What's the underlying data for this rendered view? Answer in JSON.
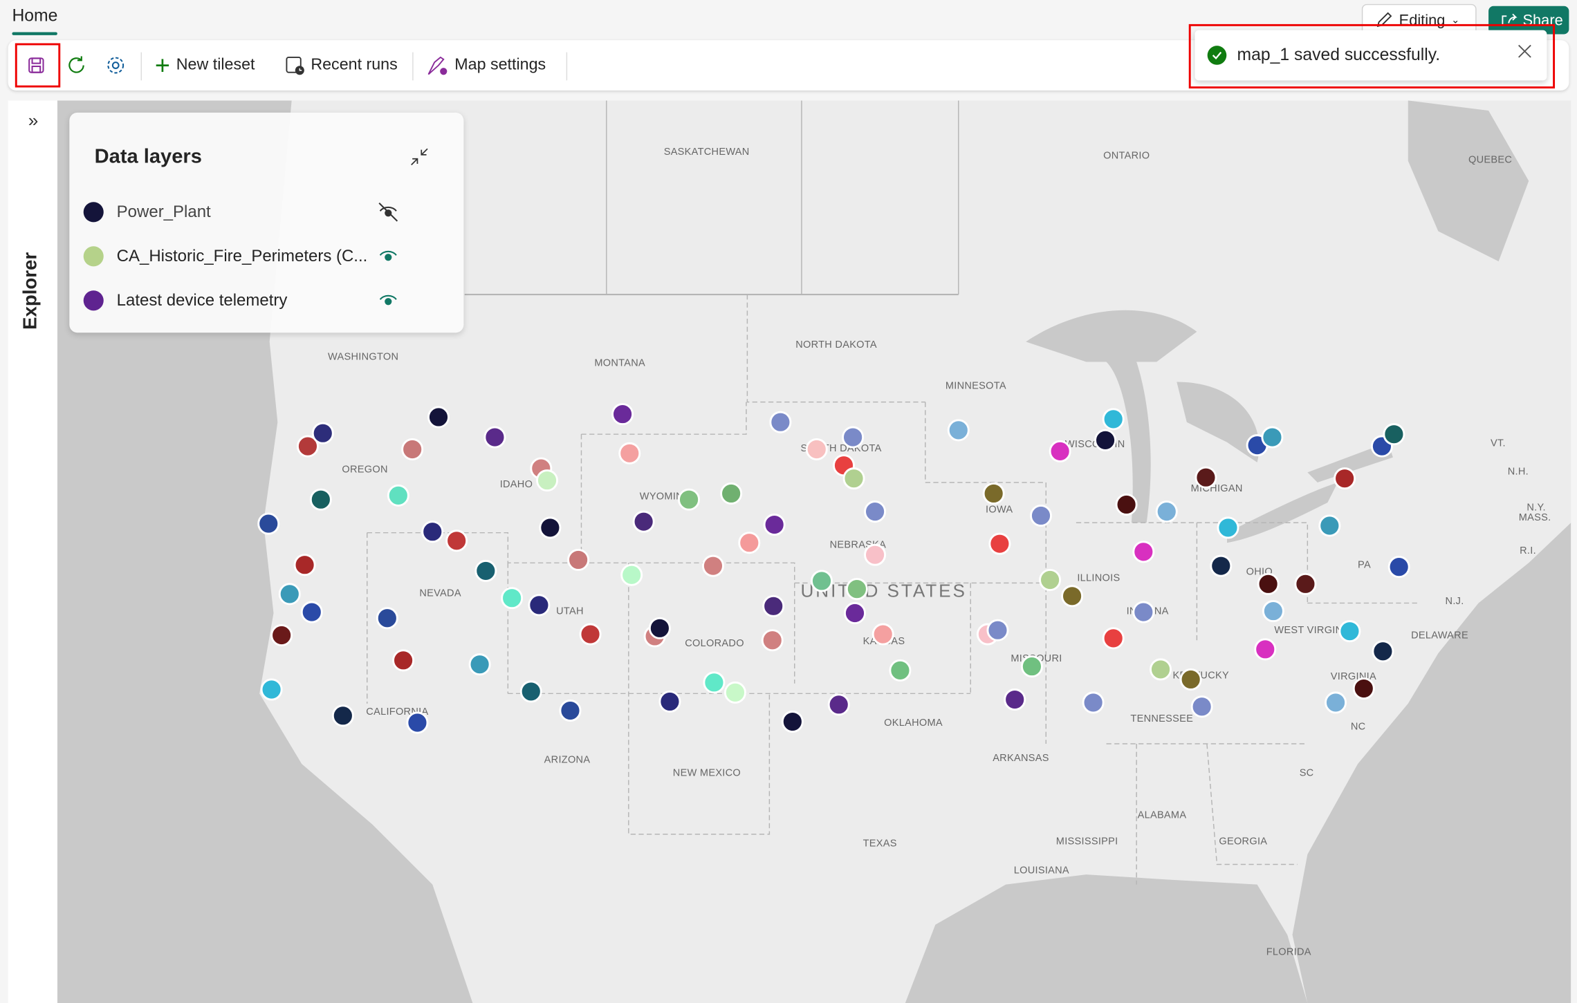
{
  "header": {
    "tab": "Home",
    "editing_label": "Editing",
    "share_label": "Share"
  },
  "toolbar": {
    "new_tileset": "New tileset",
    "recent_runs": "Recent runs",
    "map_settings": "Map settings"
  },
  "toast": {
    "message": "map_1 saved successfully.",
    "status_color": "#107c10"
  },
  "explorer": {
    "label": "Explorer"
  },
  "data_layers": {
    "title": "Data layers",
    "items": [
      {
        "name": "Power_Plant",
        "color": "#14143a",
        "visible": false
      },
      {
        "name": "CA_Historic_Fire_Perimeters (C...",
        "color": "#b5d28a",
        "visible": true
      },
      {
        "name": "Latest device telemetry",
        "color": "#5f2390",
        "visible": true
      }
    ]
  },
  "map": {
    "country_label": "UNITED STATES",
    "labels": [
      "SASKATCHEWAN",
      "ONTARIO",
      "QUEBEC",
      "WASHINGTON",
      "MONTANA",
      "NORTH DAKOTA",
      "MINNESOTA",
      "OREGON",
      "IDAHO",
      "SOUTH DAKOTA",
      "WISCONSIN",
      "MICHIGAN",
      "WYOMING",
      "IOWA",
      "NEBRASKA",
      "ILLINOIS",
      "INDIANA",
      "OHIO",
      "PA",
      "N.Y.",
      "VT.",
      "N.H.",
      "MASS.",
      "R.I.",
      "N.J.",
      "DELAWARE",
      "NEVADA",
      "UTAH",
      "COLORADO",
      "KANSAS",
      "MISSOURI",
      "KENTUCKY",
      "WEST VIRGINIA",
      "VIRGINIA",
      "CALIFORNIA",
      "OKLAHOMA",
      "TENNESSEE",
      "NC",
      "ARIZONA",
      "NEW MEXICO",
      "ARKANSAS",
      "SC",
      "ALABAMA",
      "GEORGIA",
      "MISSISSIPPI",
      "TEXAS",
      "LOUISIANA",
      "FLORIDA"
    ]
  },
  "accent": "#117865"
}
